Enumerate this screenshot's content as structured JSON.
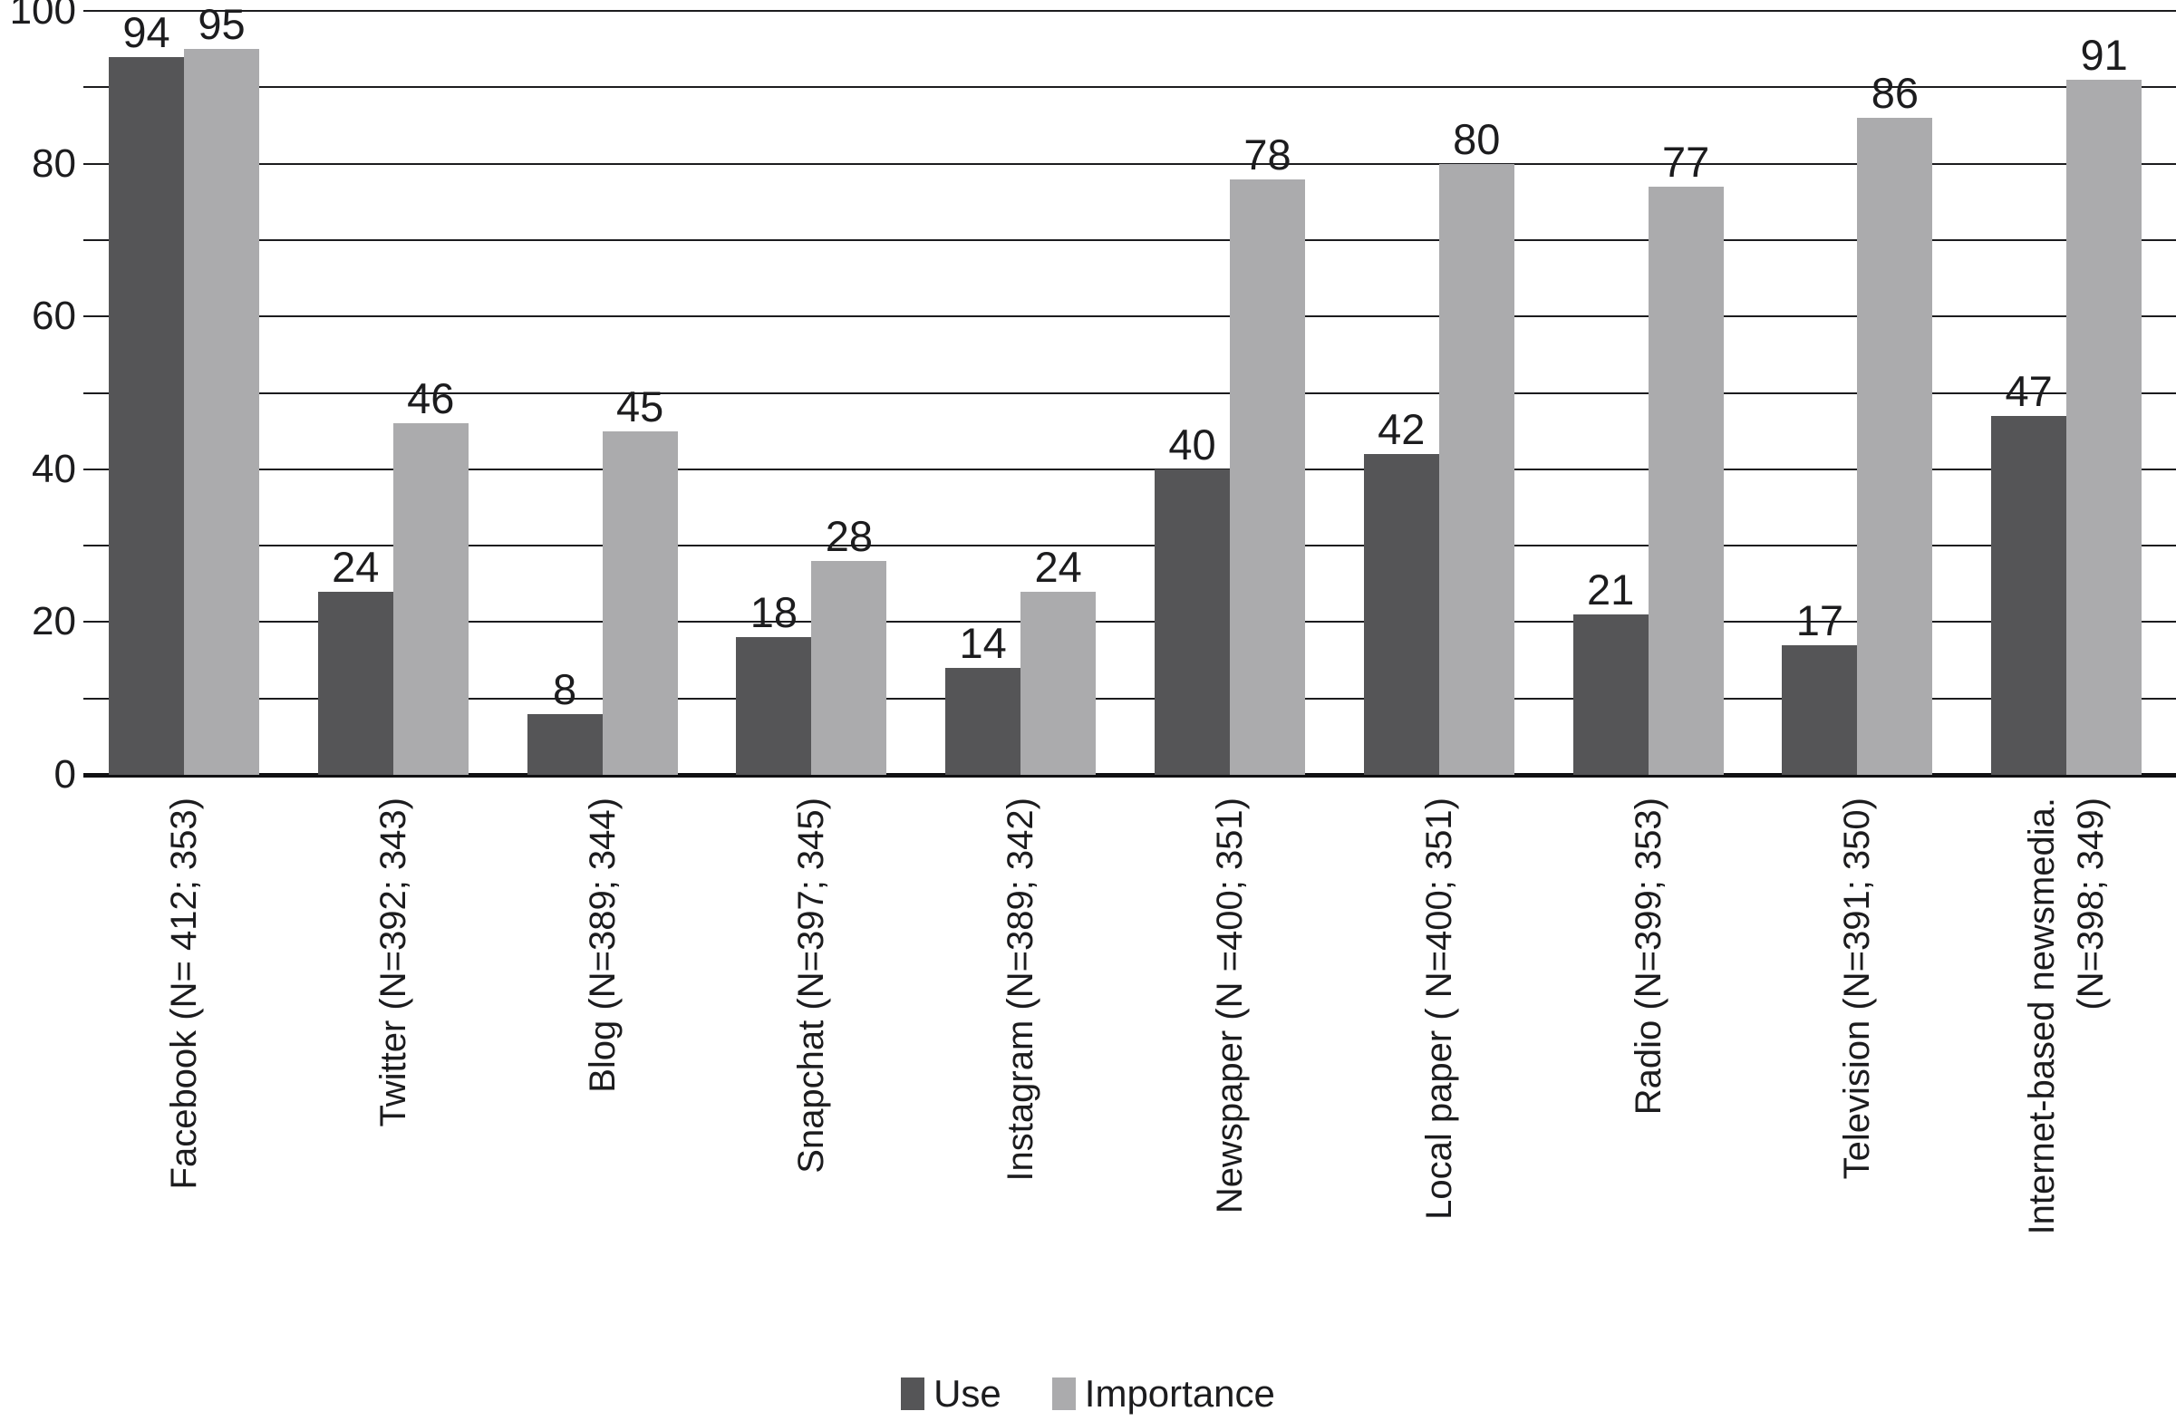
{
  "chart_data": {
    "type": "bar",
    "title": "",
    "xlabel": "",
    "ylabel": "",
    "ylim": [
      0,
      100
    ],
    "y_major_ticks": [
      0,
      20,
      40,
      60,
      80,
      100
    ],
    "y_gridline_step": 10,
    "grid": true,
    "legend_position": "bottom-center",
    "background_color": "#ffffff",
    "gridline_color": "#1c1c1e",
    "text_color": "#1c1c1e",
    "categories": [
      "Facebook (N= 412; 353)",
      "Twitter (N=392; 343)",
      "Blog (N=389; 344)",
      "Snapchat (N=397; 345)",
      "Instagram (N=389; 342)",
      "Newspaper (N =400; 351)",
      "Local paper ( N=400; 351)",
      "Radio (N=399; 353)",
      "Television (N=391; 350)",
      "Internet-based newsmedia.\n(N=398; 349)"
    ],
    "series": [
      {
        "name": "Use",
        "color": "#555557",
        "values": [
          94,
          24,
          8,
          18,
          14,
          40,
          42,
          21,
          17,
          47
        ]
      },
      {
        "name": "Importance",
        "color": "#ababad",
        "values": [
          95,
          46,
          45,
          28,
          24,
          78,
          80,
          77,
          86,
          91
        ]
      }
    ]
  },
  "legend": {
    "items": [
      {
        "label": "Use",
        "color": "#555557"
      },
      {
        "label": "Importance",
        "color": "#ababad"
      }
    ]
  }
}
